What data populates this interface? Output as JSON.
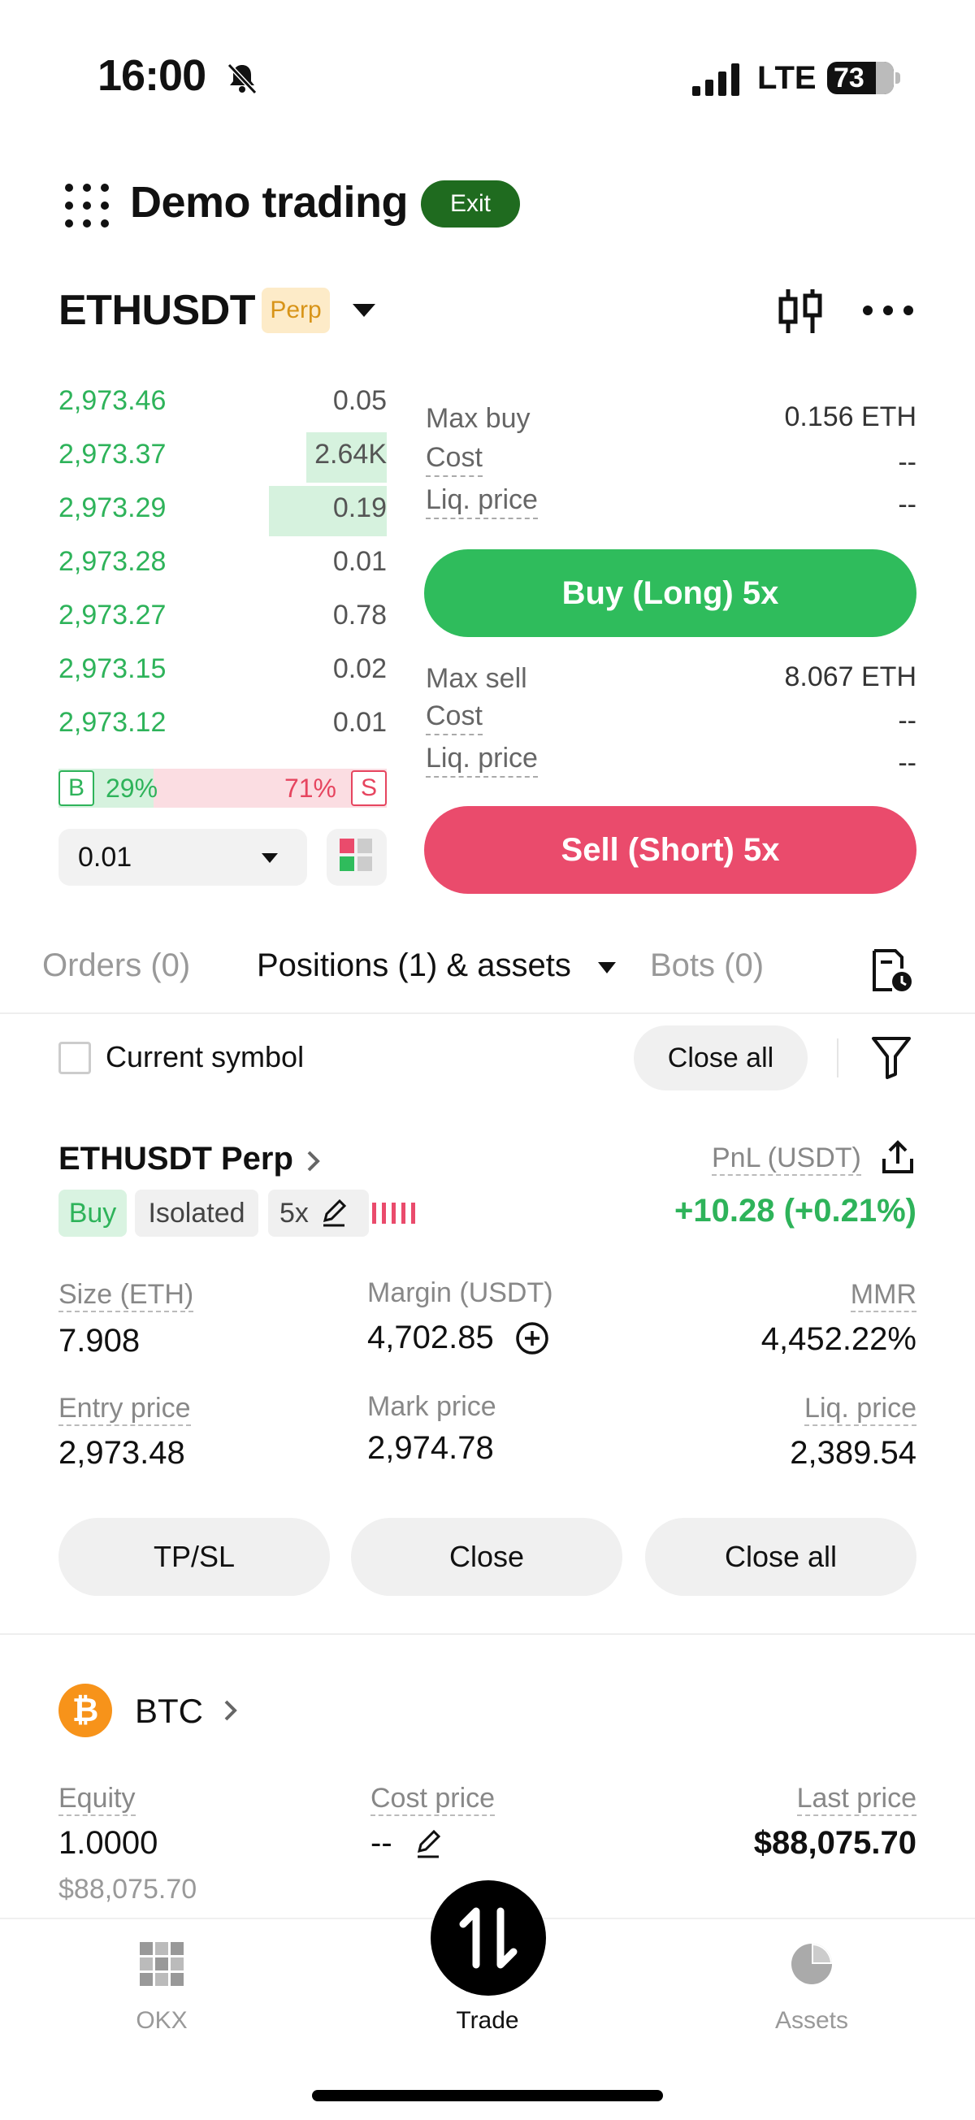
{
  "status_bar": {
    "time": "16:00",
    "network": "LTE",
    "battery": "73"
  },
  "header": {
    "title": "Demo trading",
    "exit_label": "Exit"
  },
  "instrument": {
    "pair": "ETHUSDT",
    "badge": "Perp"
  },
  "order_book": {
    "rows": [
      {
        "price": "2,973.46",
        "qty": "0.05",
        "depth": 0
      },
      {
        "price": "2,973.37",
        "qty": "2.64K",
        "depth": 0.245
      },
      {
        "price": "2,973.29",
        "qty": "0.19",
        "depth": 0.36
      },
      {
        "price": "2,973.28",
        "qty": "0.01",
        "depth": 0
      },
      {
        "price": "2,973.27",
        "qty": "0.78",
        "depth": 0
      },
      {
        "price": "2,973.15",
        "qty": "0.02",
        "depth": 0
      },
      {
        "price": "2,973.12",
        "qty": "0.01",
        "depth": 0
      }
    ],
    "buy_ratio": {
      "letter": "B",
      "pct": "29%",
      "value": 0.29
    },
    "sell_ratio": {
      "letter": "S",
      "pct": "71%",
      "value": 0.71
    },
    "depth_step": "0.01"
  },
  "trade_form": {
    "buy": {
      "max_label": "Max buy",
      "max_value": "0.156 ETH",
      "cost_label": "Cost",
      "cost_value": "--",
      "liq_label": "Liq. price",
      "liq_value": "--",
      "button": "Buy (Long) 5x"
    },
    "sell": {
      "max_label": "Max sell",
      "max_value": "8.067 ETH",
      "cost_label": "Cost",
      "cost_value": "--",
      "liq_label": "Liq. price",
      "liq_value": "--",
      "button": "Sell (Short) 5x"
    }
  },
  "tabs": {
    "orders": "Orders (0)",
    "positions": "Positions (1) & assets",
    "bots": "Bots (0)"
  },
  "filter_row": {
    "checkbox_label": "Current symbol",
    "close_all": "Close all"
  },
  "position": {
    "title": "ETHUSDT Perp",
    "pnl_label": "PnL (USDT)",
    "pnl_value": "+10.28 (+0.21%)",
    "tag_side": "Buy",
    "tag_margin": "Isolated",
    "tag_leverage": "5x",
    "size_label": "Size (ETH)",
    "size_value": "7.908",
    "margin_label": "Margin (USDT)",
    "margin_value": "4,702.85",
    "mmr_label": "MMR",
    "mmr_value": "4,452.22%",
    "entry_label": "Entry price",
    "entry_value": "2,973.48",
    "mark_label": "Mark price",
    "mark_value": "2,974.78",
    "liq_label": "Liq. price",
    "liq_value": "2,389.54",
    "btn_tpsl": "TP/SL",
    "btn_close": "Close",
    "btn_close_all": "Close all"
  },
  "asset": {
    "coin_symbol": "₿",
    "name": "BTC",
    "equity_label": "Equity",
    "equity_value": "1.0000",
    "equity_usd": "$88,075.70",
    "cost_label": "Cost price",
    "cost_value": "--",
    "last_label": "Last price",
    "last_value": "$88,075.70"
  },
  "bottom_nav": {
    "okx": "OKX",
    "trade": "Trade",
    "assets": "Assets"
  },
  "colors": {
    "green": "#2fbc5c",
    "red": "#ea4b6c",
    "exit_green": "#1f6b1f",
    "perp_badge": "#fdebc8"
  }
}
